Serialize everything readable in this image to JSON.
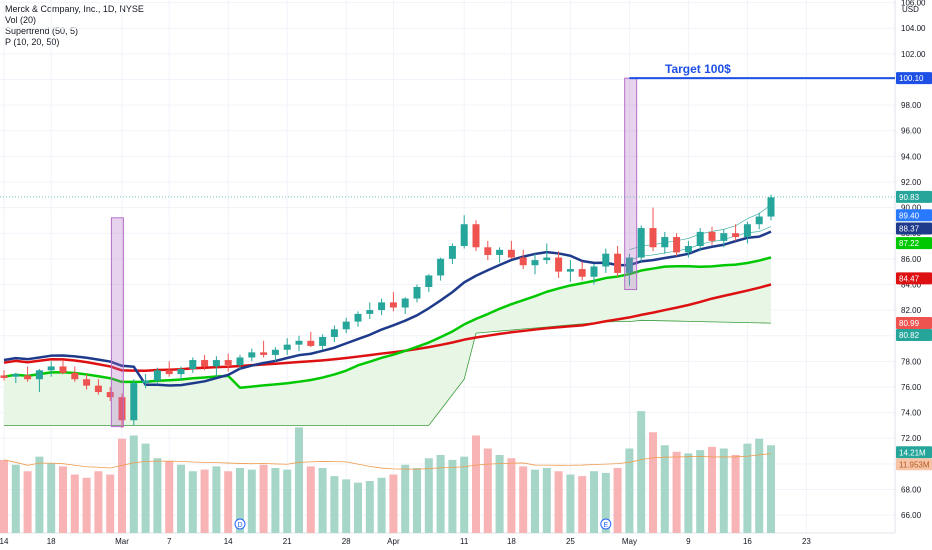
{
  "legend": {
    "title": "Merck & Company, Inc., 1D, NYSE",
    "vol": "Vol (20)",
    "supertrend": "Supertrend (50, 5)",
    "p": "P (10, 20, 50)"
  },
  "currency": "USD",
  "annotation": "Target 100$",
  "chart_data": {
    "type": "candlestick",
    "ylim": [
      64.6,
      106.2
    ],
    "y_ticks": [
      66,
      68,
      70,
      72,
      74,
      76,
      78,
      80,
      82,
      84,
      86,
      88,
      90,
      92,
      94,
      96,
      98,
      100,
      102,
      104,
      106
    ],
    "x_ticks": [
      {
        "label": "14",
        "i": 0
      },
      {
        "label": "18",
        "i": 4
      },
      {
        "label": "Mar",
        "i": 10
      },
      {
        "label": "7",
        "i": 14
      },
      {
        "label": "14",
        "i": 19
      },
      {
        "label": "21",
        "i": 24
      },
      {
        "label": "28",
        "i": 29
      },
      {
        "label": "Apr",
        "i": 33
      },
      {
        "label": "11",
        "i": 39
      },
      {
        "label": "18",
        "i": 43
      },
      {
        "label": "25",
        "i": 48
      },
      {
        "label": "May",
        "i": 53
      },
      {
        "label": "9",
        "i": 58
      },
      {
        "label": "16",
        "i": 63
      },
      {
        "label": "23",
        "i": 68
      }
    ],
    "events": [
      {
        "label": "D",
        "i": 20
      },
      {
        "label": "E",
        "i": 51
      }
    ],
    "candles": [
      [
        76.9,
        77.3,
        76.5,
        76.7
      ],
      [
        76.8,
        77.1,
        76.3,
        77.0
      ],
      [
        76.9,
        77.6,
        76.4,
        76.6
      ],
      [
        76.6,
        77.4,
        75.6,
        77.3
      ],
      [
        77.3,
        78.0,
        76.8,
        77.6
      ],
      [
        77.6,
        78.1,
        77.0,
        77.1
      ],
      [
        77.1,
        77.6,
        76.4,
        76.6
      ],
      [
        76.6,
        77.0,
        75.8,
        76.1
      ],
      [
        76.1,
        76.6,
        75.4,
        75.6
      ],
      [
        75.6,
        76.0,
        74.9,
        75.2
      ],
      [
        75.2,
        75.5,
        72.8,
        73.4
      ],
      [
        73.4,
        76.6,
        73.0,
        76.3
      ],
      [
        76.3,
        77.0,
        75.9,
        76.5
      ],
      [
        76.5,
        77.5,
        76.2,
        77.3
      ],
      [
        77.3,
        78.0,
        76.8,
        77.0
      ],
      [
        77.0,
        77.6,
        76.5,
        77.4
      ],
      [
        77.4,
        78.3,
        77.1,
        78.1
      ],
      [
        78.1,
        78.5,
        77.3,
        77.6
      ],
      [
        77.6,
        78.4,
        76.8,
        78.1
      ],
      [
        78.1,
        78.6,
        77.2,
        77.7
      ],
      [
        77.7,
        78.5,
        77.4,
        78.3
      ],
      [
        78.3,
        79.0,
        78.0,
        78.7
      ],
      [
        78.7,
        79.6,
        78.3,
        78.5
      ],
      [
        78.5,
        79.1,
        78.0,
        78.9
      ],
      [
        78.9,
        79.8,
        78.5,
        79.3
      ],
      [
        79.3,
        80.0,
        78.8,
        79.6
      ],
      [
        79.6,
        80.3,
        79.1,
        79.2
      ],
      [
        79.2,
        80.1,
        78.9,
        79.9
      ],
      [
        79.9,
        80.8,
        79.5,
        80.5
      ],
      [
        80.5,
        81.4,
        80.2,
        81.1
      ],
      [
        81.1,
        81.9,
        80.7,
        81.7
      ],
      [
        81.7,
        82.6,
        81.3,
        82.0
      ],
      [
        82.0,
        82.9,
        81.6,
        82.6
      ],
      [
        82.6,
        83.4,
        81.9,
        82.2
      ],
      [
        82.2,
        83.0,
        81.7,
        82.9
      ],
      [
        82.9,
        84.0,
        82.6,
        83.8
      ],
      [
        83.8,
        84.8,
        83.4,
        84.7
      ],
      [
        84.7,
        86.1,
        84.3,
        86.0
      ],
      [
        86.0,
        87.2,
        85.6,
        87.0
      ],
      [
        87.0,
        89.4,
        86.8,
        88.7
      ],
      [
        88.7,
        89.0,
        86.6,
        86.9
      ],
      [
        86.9,
        87.4,
        85.9,
        86.3
      ],
      [
        86.3,
        86.9,
        85.7,
        86.7
      ],
      [
        86.7,
        87.4,
        86.0,
        86.1
      ],
      [
        86.1,
        86.7,
        85.2,
        85.5
      ],
      [
        85.5,
        86.4,
        84.8,
        85.9
      ],
      [
        85.9,
        87.2,
        85.6,
        86.1
      ],
      [
        86.1,
        86.6,
        84.5,
        85.0
      ],
      [
        85.0,
        85.9,
        84.2,
        85.2
      ],
      [
        85.2,
        85.8,
        84.3,
        84.6
      ],
      [
        84.6,
        85.6,
        84.0,
        85.4
      ],
      [
        85.4,
        86.8,
        84.9,
        86.4
      ],
      [
        86.4,
        87.0,
        84.6,
        84.9
      ],
      [
        84.9,
        86.4,
        83.9,
        86.1
      ],
      [
        86.1,
        88.6,
        85.8,
        88.4
      ],
      [
        88.4,
        90.0,
        86.6,
        86.9
      ],
      [
        86.9,
        88.1,
        86.4,
        87.7
      ],
      [
        87.7,
        88.0,
        86.2,
        86.5
      ],
      [
        86.5,
        87.4,
        86.1,
        87.0
      ],
      [
        87.0,
        88.4,
        86.6,
        88.1
      ],
      [
        88.1,
        88.5,
        87.1,
        87.4
      ],
      [
        87.4,
        88.3,
        86.9,
        88.0
      ],
      [
        88.0,
        88.7,
        87.4,
        87.7
      ],
      [
        87.7,
        88.9,
        87.2,
        88.7
      ],
      [
        88.7,
        89.6,
        88.3,
        89.3
      ],
      [
        89.3,
        91.0,
        89.0,
        90.8
      ]
    ],
    "volume": [
      45,
      42,
      38,
      47,
      43,
      41,
      36,
      34,
      38,
      36,
      58,
      60,
      55,
      46,
      44,
      42,
      38,
      39,
      41,
      38,
      40,
      39,
      42,
      40,
      39,
      65,
      41,
      40,
      35,
      33,
      31,
      32,
      34,
      36,
      42,
      40,
      46,
      48,
      45,
      47,
      60,
      52,
      48,
      46,
      41,
      39,
      40,
      38,
      36,
      35,
      38,
      37,
      40,
      52,
      75,
      62,
      54,
      50,
      49,
      51,
      53,
      52,
      48,
      55,
      58,
      54
    ],
    "supertrend": [
      76.6,
      76.6,
      76.6,
      76.6,
      76.6,
      76.6,
      76.6,
      76.6,
      76.6,
      76.6,
      76.6,
      76.6,
      76.6,
      76.6,
      76.6,
      76.6,
      76.6,
      76.6,
      76.6,
      76.6,
      76.6,
      76.6,
      76.6,
      76.6,
      76.6,
      76.6,
      76.6,
      76.6,
      76.6,
      76.6,
      76.6,
      76.6,
      76.6,
      76.6,
      76.6,
      76.6,
      76.6,
      76.6,
      76.6,
      76.6,
      76.6,
      76.6,
      76.6,
      76.6,
      76.6,
      76.6,
      76.6,
      76.6,
      76.6,
      76.6,
      76.6,
      76.6,
      76.6,
      76.6,
      76.6,
      76.6,
      76.6,
      76.6,
      76.6,
      76.6,
      76.6,
      76.6,
      76.6,
      76.6,
      76.6,
      76.6
    ],
    "series": [
      {
        "name": "Vol (20)",
        "last_label": "14.21M",
        "label2": "11.953M",
        "color": "#26a69a"
      },
      {
        "name": "P (10)",
        "last_label": "88.37",
        "color": "#1e3a8a"
      },
      {
        "name": "P (20)",
        "last_label": "87.22",
        "color": "#00c800"
      },
      {
        "name": "P (50)",
        "last_label": "84.47",
        "color": "#dd1111"
      }
    ],
    "price_label": "90.83",
    "labels_right": [
      "100.10",
      "90.83",
      "89.40",
      "88.37",
      "87.22",
      "84.47",
      "80.99",
      "80.82",
      "14.21M",
      "11.953M"
    ],
    "target_level": 100.1,
    "current_price": 90.83
  },
  "colors": {
    "up": "#26a69a",
    "down": "#ef5350",
    "vol_up": "#a5d6c8",
    "vol_down": "#f8b4b4",
    "target_line": "#1e50e6",
    "box": "#b46ec8",
    "supertrend_fill": "#e8f6e6",
    "supertrend_line": "#3c9c3c",
    "vol_ma": "#f09a4b"
  }
}
